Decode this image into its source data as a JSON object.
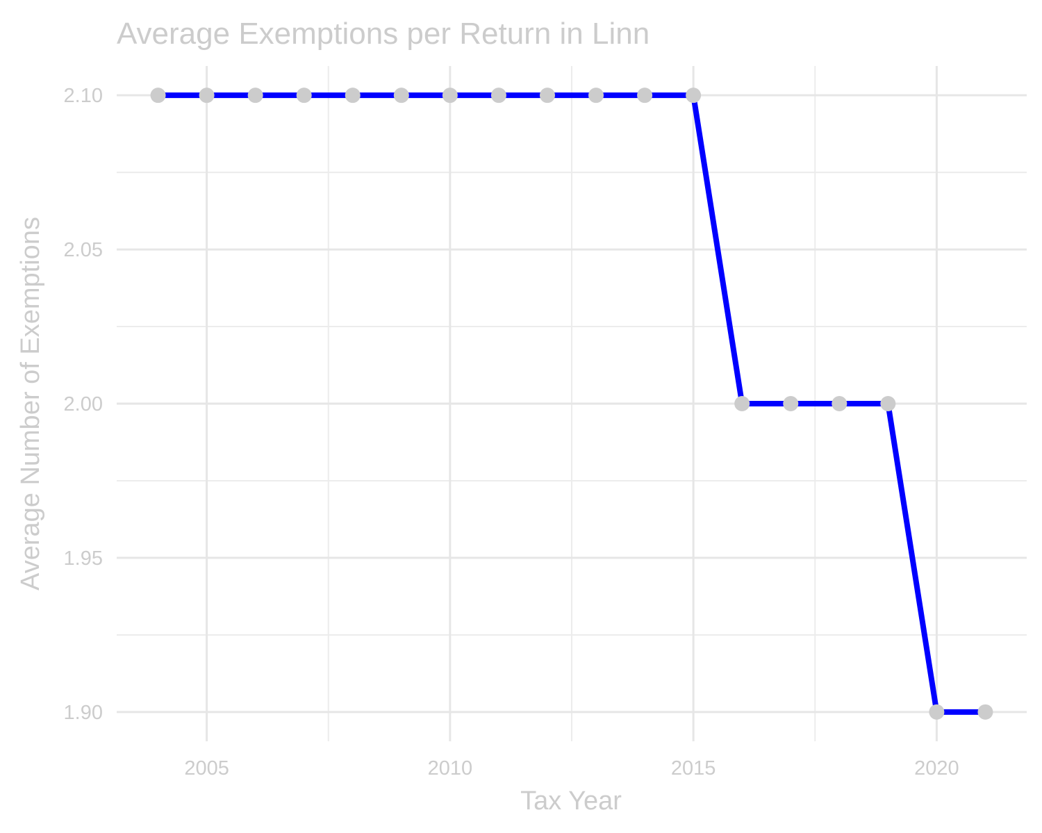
{
  "chart_data": {
    "type": "line",
    "title": "Average Exemptions per Return in Linn",
    "xlabel": "Tax Year",
    "ylabel": "Average Number of Exemptions",
    "x": [
      2004,
      2005,
      2006,
      2007,
      2008,
      2009,
      2010,
      2011,
      2012,
      2013,
      2014,
      2015,
      2016,
      2017,
      2018,
      2019,
      2020,
      2021
    ],
    "series": [
      {
        "values": [
          2.1,
          2.1,
          2.1,
          2.1,
          2.1,
          2.1,
          2.1,
          2.1,
          2.1,
          2.1,
          2.1,
          2.1,
          2.0,
          2.0,
          2.0,
          2.0,
          1.9,
          1.9
        ]
      }
    ],
    "xlim": [
      2003.15,
      2021.85
    ],
    "ylim": [
      1.8905,
      2.1095
    ],
    "x_ticks": [
      {
        "value": 2005,
        "label": "2005"
      },
      {
        "value": 2010,
        "label": "2010"
      },
      {
        "value": 2015,
        "label": "2015"
      },
      {
        "value": 2020,
        "label": "2020"
      }
    ],
    "x_minor_ticks": [
      2007.5,
      2012.5,
      2017.5
    ],
    "y_ticks": [
      {
        "value": 1.9,
        "label": "1.90"
      },
      {
        "value": 1.95,
        "label": "1.95"
      },
      {
        "value": 2.0,
        "label": "2.00"
      },
      {
        "value": 2.05,
        "label": "2.05"
      },
      {
        "value": 2.1,
        "label": "2.10"
      }
    ],
    "y_minor_ticks": [
      1.925,
      1.975,
      2.025,
      2.075
    ],
    "grid": true,
    "legend": "none",
    "colors": {
      "line": "#0000ff",
      "point": "#cccccc",
      "text": "#cccccc",
      "grid": "#e6e6e6"
    }
  }
}
